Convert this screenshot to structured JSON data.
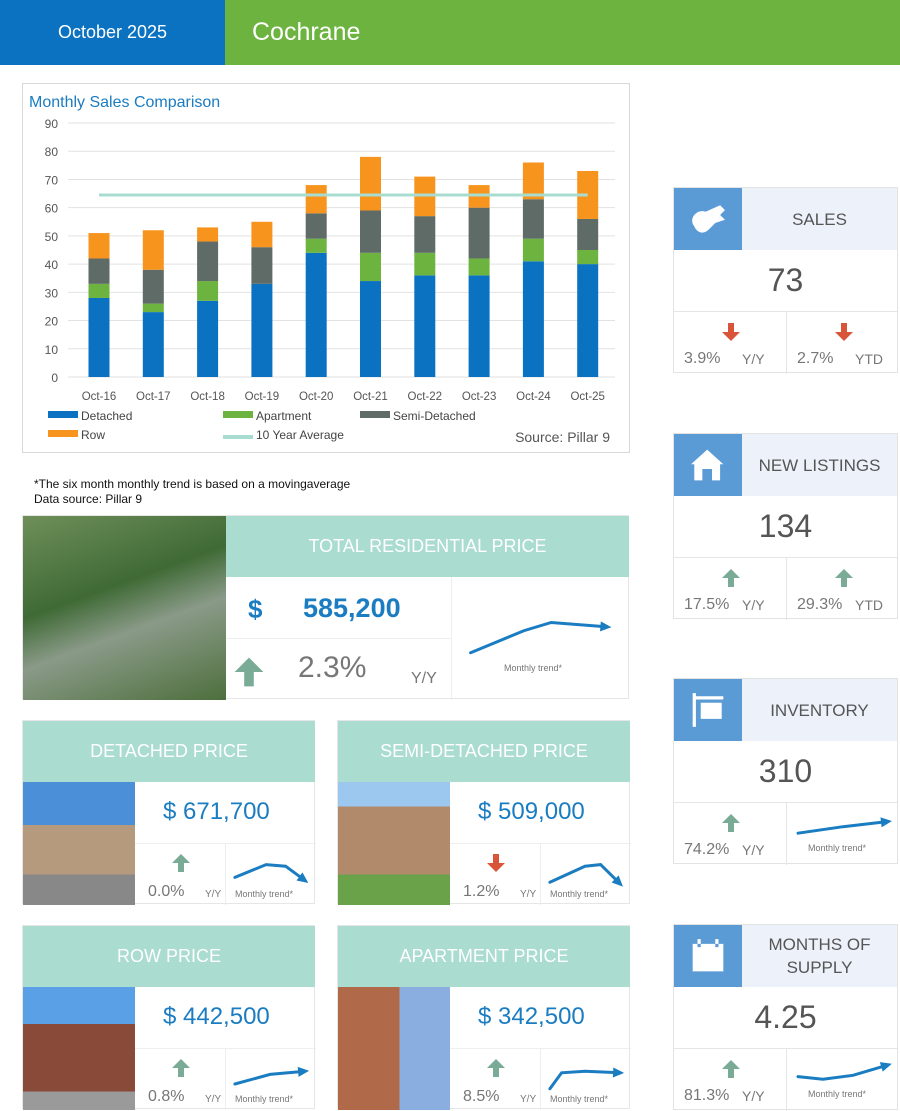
{
  "header": {
    "date": "October 2025",
    "city": "Cochrane"
  },
  "chart_data": {
    "type": "bar",
    "stacked": true,
    "title": "Monthly Sales Comparison",
    "categories": [
      "Oct-16",
      "Oct-17",
      "Oct-18",
      "Oct-19",
      "Oct-20",
      "Oct-21",
      "Oct-22",
      "Oct-23",
      "Oct-24",
      "Oct-25"
    ],
    "series": [
      {
        "name": "Detached",
        "color": "#0a72c0",
        "values": [
          28,
          23,
          27,
          33,
          44,
          34,
          36,
          36,
          41,
          40
        ]
      },
      {
        "name": "Apartment",
        "color": "#6db33f",
        "values": [
          5,
          3,
          7,
          0,
          5,
          10,
          8,
          6,
          8,
          5
        ]
      },
      {
        "name": "Semi-Detached",
        "color": "#5f6b66",
        "values": [
          9,
          12,
          14,
          13,
          9,
          15,
          13,
          18,
          14,
          11
        ]
      },
      {
        "name": "Row",
        "color": "#f7941d",
        "values": [
          9,
          14,
          5,
          9,
          10,
          19,
          14,
          8,
          13,
          17
        ]
      }
    ],
    "line": {
      "name": "10 Year Average",
      "color": "#a8dcd1",
      "value": 64.5
    },
    "ylim": [
      0,
      90
    ],
    "yticks": [
      0,
      10,
      20,
      30,
      40,
      50,
      60,
      70,
      80,
      90
    ],
    "grid": true,
    "legend": "bottom",
    "source": "Source: Pillar 9"
  },
  "notes": {
    "line1": "*The six month monthly trend is based on a movingaverage",
    "line2": "Data source: Pillar 9"
  },
  "trend_label": "Monthly trend*",
  "colors": {
    "up": "#7aab96",
    "down": "#d9553a",
    "price": "#1a7cc1",
    "header_teal": "#aadccf"
  },
  "total": {
    "title": "TOTAL RESIDENTIAL PRICE",
    "dollar": "$",
    "price": "585,200",
    "change": "2.3%",
    "period": "Y/Y",
    "direction": "up"
  },
  "prices": [
    {
      "title": "DETACHED PRICE",
      "price": "$ 671,700",
      "change": "0.0%",
      "period": "Y/Y",
      "direction": "up"
    },
    {
      "title": "SEMI-DETACHED PRICE",
      "price": "$ 509,000",
      "change": "1.2%",
      "period": "Y/Y",
      "direction": "down"
    },
    {
      "title": "ROW PRICE",
      "price": "$ 442,500",
      "change": "0.8%",
      "period": "Y/Y",
      "direction": "up"
    },
    {
      "title": "APARTMENT PRICE",
      "price": "$ 342,500",
      "change": "8.5%",
      "period": "Y/Y",
      "direction": "up"
    }
  ],
  "stats": [
    {
      "title": "SALES",
      "icon": "keys-icon",
      "value": "73",
      "changes": [
        {
          "pct": "3.9%",
          "period": "Y/Y",
          "direction": "down"
        },
        {
          "pct": "2.7%",
          "period": "YTD",
          "direction": "down"
        }
      ]
    },
    {
      "title": "NEW LISTINGS",
      "icon": "house-icon",
      "value": "134",
      "changes": [
        {
          "pct": "17.5%",
          "period": "Y/Y",
          "direction": "up"
        },
        {
          "pct": "29.3%",
          "period": "YTD",
          "direction": "up"
        }
      ]
    },
    {
      "title": "INVENTORY",
      "icon": "for-sale-sign-icon",
      "value": "310",
      "changes": [
        {
          "pct": "74.2%",
          "period": "Y/Y",
          "direction": "up"
        }
      ]
    },
    {
      "title": "MONTHS OF SUPPLY",
      "icon": "calendar-icon",
      "value": "4.25",
      "changes": [
        {
          "pct": "81.3%",
          "period": "Y/Y",
          "direction": "up"
        }
      ]
    }
  ]
}
